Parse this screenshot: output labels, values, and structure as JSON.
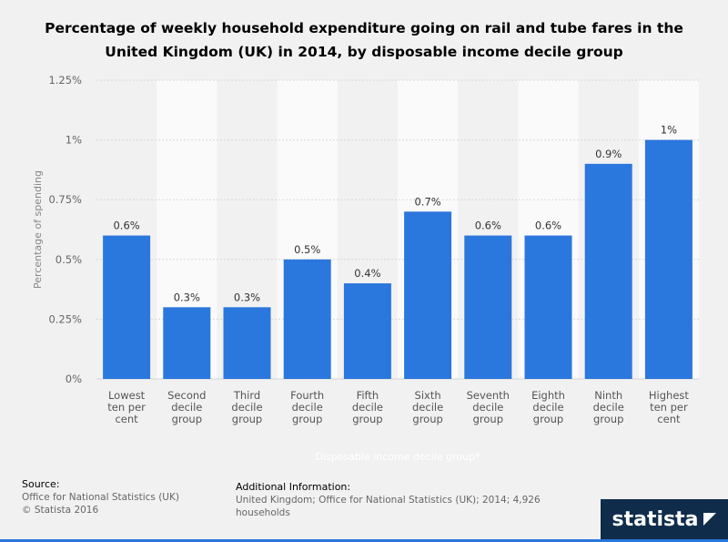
{
  "title": "Percentage of weekly household expenditure going on rail and tube fares in the United Kingdom (UK) in 2014, by disposable income decile group",
  "colors": {
    "bar": "#2a77dd",
    "band": "#fafafa",
    "grid": "#d8d8d8",
    "brand_bg": "#0f2c4b"
  },
  "chart_data": {
    "type": "bar",
    "categories": [
      [
        "Lowest",
        "ten per",
        "cent"
      ],
      [
        "Second",
        "decile",
        "group"
      ],
      [
        "Third",
        "decile",
        "group"
      ],
      [
        "Fourth",
        "decile",
        "group"
      ],
      [
        "Fifth",
        "decile",
        "group"
      ],
      [
        "Sixth",
        "decile",
        "group"
      ],
      [
        "Seventh",
        "decile",
        "group"
      ],
      [
        "Eighth",
        "decile",
        "group"
      ],
      [
        "Ninth",
        "decile",
        "group"
      ],
      [
        "Highest",
        "ten per",
        "cent"
      ]
    ],
    "values": [
      0.6,
      0.3,
      0.3,
      0.5,
      0.4,
      0.7,
      0.6,
      0.6,
      0.9,
      1.0
    ],
    "data_labels": [
      "0.6%",
      "0.3%",
      "0.3%",
      "0.5%",
      "0.4%",
      "0.7%",
      "0.6%",
      "0.6%",
      "0.9%",
      "1%"
    ],
    "yticks": [
      0,
      0.25,
      0.5,
      0.75,
      1,
      1.25
    ],
    "ytick_labels": [
      "0%",
      "0.25%",
      "0.5%",
      "0.75%",
      "1%",
      "1.25%"
    ],
    "ylim": [
      0,
      1.25
    ],
    "ylabel": "Percentage of spending",
    "xlabel": "Disposable income decile group*",
    "grid": true
  },
  "footer": {
    "source_heading": "Source:",
    "source_lines": [
      "Office for National Statistics (UK)",
      "© Statista 2016"
    ],
    "info_heading": "Additional Information:",
    "info_lines": [
      "United Kingdom; Office for National Statistics (UK); 2014; 4,926",
      "households"
    ]
  },
  "brand": {
    "name": "statista",
    "icon": "statista-logo-icon"
  }
}
